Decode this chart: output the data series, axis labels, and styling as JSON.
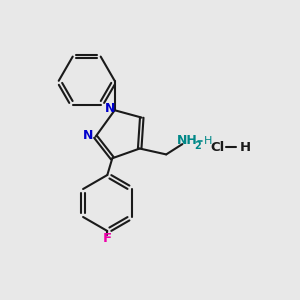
{
  "background_color": "#e8e8e8",
  "bond_color": "#1a1a1a",
  "nitrogen_color": "#0000cc",
  "fluorine_color": "#ee00aa",
  "amine_n_color": "#008888",
  "amine_h_color": "#008888",
  "hcl_color": "#1a1a1a",
  "line_width": 1.5,
  "figsize": [
    3.0,
    3.0
  ],
  "dpi": 100,
  "xlim": [
    0,
    10
  ],
  "ylim": [
    0,
    10
  ]
}
